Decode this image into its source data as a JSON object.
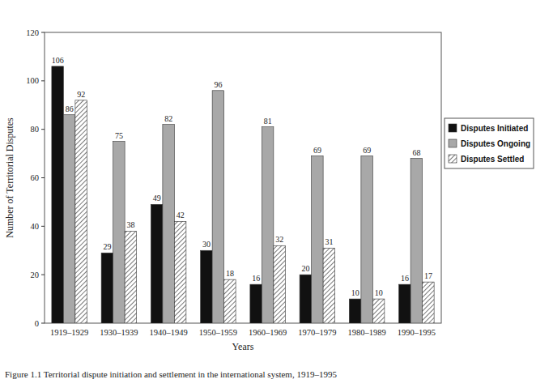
{
  "chart_data": {
    "type": "bar",
    "caption": "Figure 1.1 Territorial dispute initiation and settlement in the international system, 1919–1995",
    "x_label": "Years",
    "y_label": "Number of Territorial Disputes",
    "categories": [
      "1919–1929",
      "1930–1939",
      "1940–1949",
      "1950–1959",
      "1960–1969",
      "1970–1979",
      "1980–1989",
      "1990–1995"
    ],
    "series": [
      {
        "name": "Disputes Initiated",
        "color": "#111111",
        "values": [
          106,
          29,
          49,
          30,
          16,
          20,
          10,
          16
        ]
      },
      {
        "name": "Disputes Ongoing",
        "color": "#a8a8a8",
        "values": [
          86,
          75,
          82,
          96,
          81,
          69,
          69,
          68
        ]
      },
      {
        "name": "Disputes Settled",
        "color": "#555555",
        "values": [
          92,
          38,
          42,
          18,
          32,
          31,
          10,
          17
        ]
      }
    ],
    "ylim": [
      0,
      120
    ],
    "yticks": [
      0,
      20,
      40,
      60,
      80,
      100,
      120
    ],
    "grid": false,
    "legend": "right",
    "data_labels": true
  }
}
